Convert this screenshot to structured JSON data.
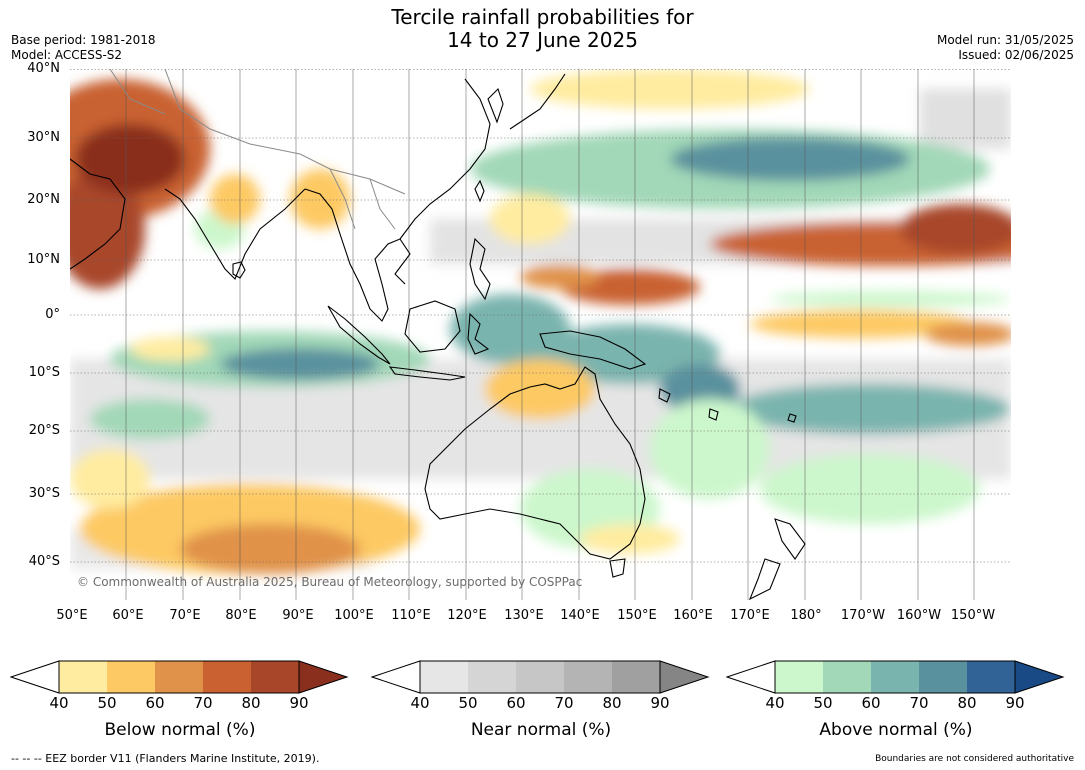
{
  "header": {
    "title_line1": "Tercile rainfall probabilities for",
    "title_line2": "14 to 27 June 2025",
    "base_period": "Base period: 1981-2018",
    "model": "Model: ACCESS-S2",
    "model_run": "Model run: 31/05/2025",
    "issued": "Issued: 02/06/2025"
  },
  "map": {
    "lat_labels": [
      "40°N",
      "30°N",
      "20°N",
      "10°N",
      "0°",
      "10°S",
      "20°S",
      "30°S",
      "40°S"
    ],
    "lon_labels": [
      "50°E",
      "60°E",
      "70°E",
      "80°E",
      "90°E",
      "100°E",
      "110°E",
      "120°E",
      "130°E",
      "140°E",
      "150°E",
      "160°E",
      "170°E",
      "180°",
      "170°W",
      "160°W",
      "150°W"
    ],
    "copyright": "© Commonwealth of Australia 2025, Bureau of Meteorology, supported by COSPPac",
    "colors": {
      "ocean_base": "#f2f2f2",
      "land_outline": "#000000",
      "border_line": "#888888",
      "grid": "#555555"
    }
  },
  "colorbars": [
    {
      "label": "Below normal (%)",
      "ticks": [
        "40",
        "50",
        "60",
        "70",
        "80",
        "90"
      ],
      "colors": [
        "#ffeca0",
        "#fdc964",
        "#e0924a",
        "#c96230",
        "#a8462a",
        "#8a2f1e"
      ]
    },
    {
      "label": "Near normal (%)",
      "ticks": [
        "40",
        "50",
        "60",
        "70",
        "80",
        "90"
      ],
      "colors": [
        "#e6e6e6",
        "#d5d5d5",
        "#c6c6c6",
        "#b4b4b4",
        "#a0a0a0",
        "#858585"
      ]
    },
    {
      "label": "Above normal (%)",
      "ticks": [
        "40",
        "50",
        "60",
        "70",
        "80",
        "90"
      ],
      "colors": [
        "#ccf7cc",
        "#a2d8b8",
        "#7ab4ae",
        "#5a919e",
        "#326396",
        "#1a4a85"
      ]
    }
  ],
  "footer": {
    "eez_note": "--  --  -- EEZ border V11 (Flanders Marine Institute, 2019).",
    "boundaries_note": "Boundaries are not considered authoritative"
  }
}
